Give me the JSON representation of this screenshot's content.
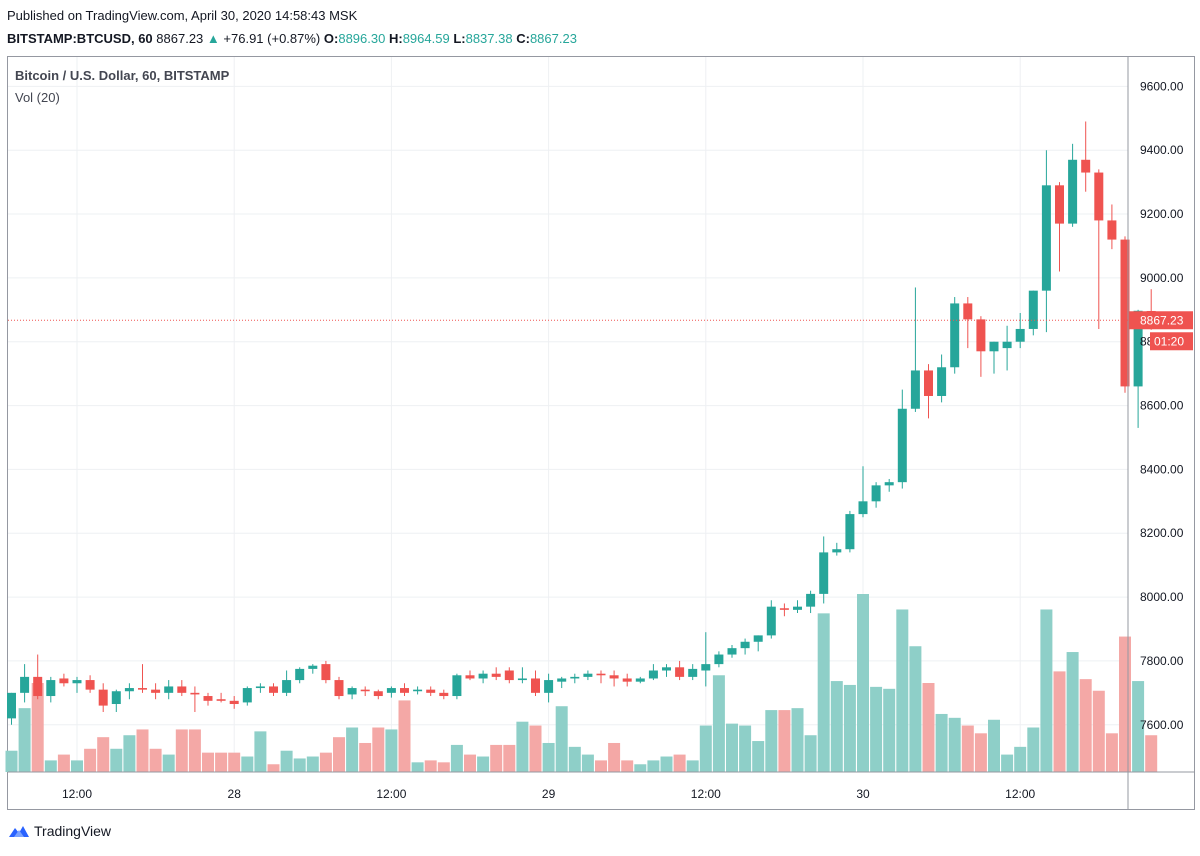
{
  "header": {
    "published": "Published on TradingView.com, April 30, 2020 14:58:43 MSK",
    "symbol": "BITSTAMP:BTCUSD, 60",
    "last": "8867.23",
    "change": "+76.91 (+0.87%)",
    "o_label": "O:",
    "o_val": "8896.30",
    "h_label": "H:",
    "h_val": "8964.59",
    "l_label": "L:",
    "l_val": "8837.38",
    "c_label": "C:",
    "c_val": "8867.23"
  },
  "legend": {
    "title": "Bitcoin / U.S. Dollar, 60, BITSTAMP",
    "volume": "Vol (20)"
  },
  "price_tag": {
    "price": "8867.23",
    "countdown": "01:20"
  },
  "footer": {
    "brand": "TradingView"
  },
  "colors": {
    "up": "#26a69a",
    "down": "#ef5350",
    "up_vol": "#8ecfc8",
    "down_vol": "#f4a8a6",
    "grid": "#eef0f3"
  },
  "chart_data": {
    "type": "candlestick",
    "title": "Bitcoin / U.S. Dollar, 60, BITSTAMP",
    "y_ticks": [
      7600,
      7800,
      8000,
      8200,
      8400,
      8600,
      8800,
      9000,
      9200,
      9400,
      9600
    ],
    "y_tick_labels": [
      "7600.00",
      "7800.00",
      "8000.00",
      "8200.00",
      "8400.00",
      "8600.00",
      "8800.00",
      "9000.00",
      "9200.00",
      "9400.00",
      "9600.00"
    ],
    "ylim": [
      7452,
      9692
    ],
    "x_ticks": [
      {
        "label": "12:00",
        "index": 5
      },
      {
        "label": "28",
        "index": 17
      },
      {
        "label": "12:00",
        "index": 29
      },
      {
        "label": "29",
        "index": 41
      },
      {
        "label": "12:00",
        "index": 53
      },
      {
        "label": "30",
        "index": 65
      },
      {
        "label": "12:00",
        "index": 77
      }
    ],
    "last_price": 8867.23,
    "candles": [
      {
        "o": 7620,
        "h": 7700,
        "l": 7600,
        "c": 7700,
        "v": 0.55
      },
      {
        "o": 7700,
        "h": 7790,
        "l": 7670,
        "c": 7750,
        "v": 1.65
      },
      {
        "o": 7750,
        "h": 7820,
        "l": 7680,
        "c": 7690,
        "v": 2.3
      },
      {
        "o": 7690,
        "h": 7750,
        "l": 7670,
        "c": 7740,
        "v": 0.3
      },
      {
        "o": 7745,
        "h": 7760,
        "l": 7720,
        "c": 7730,
        "v": 0.45
      },
      {
        "o": 7730,
        "h": 7750,
        "l": 7700,
        "c": 7740,
        "v": 0.3
      },
      {
        "o": 7740,
        "h": 7755,
        "l": 7700,
        "c": 7710,
        "v": 0.6
      },
      {
        "o": 7710,
        "h": 7730,
        "l": 7640,
        "c": 7660,
        "v": 0.9
      },
      {
        "o": 7665,
        "h": 7710,
        "l": 7640,
        "c": 7705,
        "v": 0.6
      },
      {
        "o": 7705,
        "h": 7730,
        "l": 7680,
        "c": 7715,
        "v": 0.95
      },
      {
        "o": 7715,
        "h": 7790,
        "l": 7700,
        "c": 7710,
        "v": 1.1
      },
      {
        "o": 7710,
        "h": 7730,
        "l": 7680,
        "c": 7700,
        "v": 0.6
      },
      {
        "o": 7700,
        "h": 7740,
        "l": 7680,
        "c": 7720,
        "v": 0.45
      },
      {
        "o": 7720,
        "h": 7740,
        "l": 7690,
        "c": 7700,
        "v": 1.1
      },
      {
        "o": 7700,
        "h": 7720,
        "l": 7640,
        "c": 7695,
        "v": 1.1
      },
      {
        "o": 7690,
        "h": 7700,
        "l": 7660,
        "c": 7675,
        "v": 0.5
      },
      {
        "o": 7680,
        "h": 7700,
        "l": 7670,
        "c": 7675,
        "v": 0.5
      },
      {
        "o": 7675,
        "h": 7690,
        "l": 7650,
        "c": 7665,
        "v": 0.5
      },
      {
        "o": 7670,
        "h": 7720,
        "l": 7660,
        "c": 7715,
        "v": 0.4
      },
      {
        "o": 7715,
        "h": 7730,
        "l": 7700,
        "c": 7720,
        "v": 1.05
      },
      {
        "o": 7720,
        "h": 7730,
        "l": 7690,
        "c": 7700,
        "v": 0.2
      },
      {
        "o": 7700,
        "h": 7770,
        "l": 7690,
        "c": 7740,
        "v": 0.55
      },
      {
        "o": 7740,
        "h": 7780,
        "l": 7730,
        "c": 7775,
        "v": 0.35
      },
      {
        "o": 7775,
        "h": 7790,
        "l": 7760,
        "c": 7785,
        "v": 0.4
      },
      {
        "o": 7790,
        "h": 7800,
        "l": 7730,
        "c": 7740,
        "v": 0.5
      },
      {
        "o": 7740,
        "h": 7750,
        "l": 7680,
        "c": 7690,
        "v": 0.9
      },
      {
        "o": 7695,
        "h": 7720,
        "l": 7680,
        "c": 7715,
        "v": 1.15
      },
      {
        "o": 7710,
        "h": 7720,
        "l": 7690,
        "c": 7705,
        "v": 0.75
      },
      {
        "o": 7705,
        "h": 7710,
        "l": 7680,
        "c": 7690,
        "v": 1.15
      },
      {
        "o": 7700,
        "h": 7720,
        "l": 7685,
        "c": 7715,
        "v": 1.1
      },
      {
        "o": 7715,
        "h": 7730,
        "l": 7690,
        "c": 7700,
        "v": 1.85
      },
      {
        "o": 7705,
        "h": 7720,
        "l": 7695,
        "c": 7710,
        "v": 0.25
      },
      {
        "o": 7710,
        "h": 7720,
        "l": 7690,
        "c": 7700,
        "v": 0.3
      },
      {
        "o": 7700,
        "h": 7710,
        "l": 7680,
        "c": 7690,
        "v": 0.25
      },
      {
        "o": 7690,
        "h": 7760,
        "l": 7680,
        "c": 7755,
        "v": 0.7
      },
      {
        "o": 7755,
        "h": 7770,
        "l": 7740,
        "c": 7745,
        "v": 0.45
      },
      {
        "o": 7745,
        "h": 7770,
        "l": 7730,
        "c": 7760,
        "v": 0.4
      },
      {
        "o": 7760,
        "h": 7780,
        "l": 7740,
        "c": 7750,
        "v": 0.7
      },
      {
        "o": 7770,
        "h": 7780,
        "l": 7730,
        "c": 7740,
        "v": 0.7
      },
      {
        "o": 7740,
        "h": 7780,
        "l": 7730,
        "c": 7745,
        "v": 1.3
      },
      {
        "o": 7745,
        "h": 7770,
        "l": 7690,
        "c": 7700,
        "v": 1.2
      },
      {
        "o": 7700,
        "h": 7760,
        "l": 7670,
        "c": 7740,
        "v": 0.75
      },
      {
        "o": 7735,
        "h": 7750,
        "l": 7715,
        "c": 7745,
        "v": 1.7
      },
      {
        "o": 7745,
        "h": 7760,
        "l": 7730,
        "c": 7750,
        "v": 0.65
      },
      {
        "o": 7750,
        "h": 7770,
        "l": 7740,
        "c": 7760,
        "v": 0.45
      },
      {
        "o": 7760,
        "h": 7770,
        "l": 7730,
        "c": 7755,
        "v": 0.3
      },
      {
        "o": 7755,
        "h": 7770,
        "l": 7720,
        "c": 7745,
        "v": 0.75
      },
      {
        "o": 7745,
        "h": 7760,
        "l": 7720,
        "c": 7735,
        "v": 0.3
      },
      {
        "o": 7735,
        "h": 7750,
        "l": 7730,
        "c": 7745,
        "v": 0.2
      },
      {
        "o": 7745,
        "h": 7790,
        "l": 7740,
        "c": 7770,
        "v": 0.3
      },
      {
        "o": 7770,
        "h": 7790,
        "l": 7750,
        "c": 7780,
        "v": 0.4
      },
      {
        "o": 7780,
        "h": 7800,
        "l": 7740,
        "c": 7750,
        "v": 0.45
      },
      {
        "o": 7750,
        "h": 7790,
        "l": 7740,
        "c": 7775,
        "v": 0.3
      },
      {
        "o": 7770,
        "h": 7890,
        "l": 7720,
        "c": 7790,
        "v": 1.2
      },
      {
        "o": 7790,
        "h": 7830,
        "l": 7780,
        "c": 7820,
        "v": 2.5
      },
      {
        "o": 7820,
        "h": 7850,
        "l": 7810,
        "c": 7840,
        "v": 1.25
      },
      {
        "o": 7840,
        "h": 7870,
        "l": 7820,
        "c": 7860,
        "v": 1.2
      },
      {
        "o": 7860,
        "h": 7880,
        "l": 7830,
        "c": 7880,
        "v": 0.8
      },
      {
        "o": 7880,
        "h": 7990,
        "l": 7870,
        "c": 7970,
        "v": 1.6
      },
      {
        "o": 7965,
        "h": 7980,
        "l": 7940,
        "c": 7960,
        "v": 1.6
      },
      {
        "o": 7960,
        "h": 7990,
        "l": 7950,
        "c": 7970,
        "v": 1.65
      },
      {
        "o": 7970,
        "h": 8020,
        "l": 7950,
        "c": 8010,
        "v": 0.95
      },
      {
        "o": 8010,
        "h": 8190,
        "l": 7980,
        "c": 8140,
        "v": 4.1
      },
      {
        "o": 8140,
        "h": 8170,
        "l": 8130,
        "c": 8150,
        "v": 2.35
      },
      {
        "o": 8150,
        "h": 8270,
        "l": 8140,
        "c": 8260,
        "v": 2.25
      },
      {
        "o": 8260,
        "h": 8410,
        "l": 8250,
        "c": 8300,
        "v": 4.6
      },
      {
        "o": 8300,
        "h": 8360,
        "l": 8280,
        "c": 8350,
        "v": 2.2
      },
      {
        "o": 8350,
        "h": 8370,
        "l": 8330,
        "c": 8360,
        "v": 2.15
      },
      {
        "o": 8360,
        "h": 8650,
        "l": 8340,
        "c": 8590,
        "v": 4.2
      },
      {
        "o": 8590,
        "h": 8970,
        "l": 8580,
        "c": 8710,
        "v": 3.25
      },
      {
        "o": 8710,
        "h": 8730,
        "l": 8560,
        "c": 8630,
        "v": 2.3
      },
      {
        "o": 8630,
        "h": 8760,
        "l": 8610,
        "c": 8720,
        "v": 1.5
      },
      {
        "o": 8720,
        "h": 8940,
        "l": 8700,
        "c": 8920,
        "v": 1.4
      },
      {
        "o": 8920,
        "h": 8940,
        "l": 8780,
        "c": 8870,
        "v": 1.2
      },
      {
        "o": 8870,
        "h": 8880,
        "l": 8690,
        "c": 8770,
        "v": 1.0
      },
      {
        "o": 8770,
        "h": 8800,
        "l": 8700,
        "c": 8800,
        "v": 1.35
      },
      {
        "o": 8780,
        "h": 8850,
        "l": 8710,
        "c": 8800,
        "v": 0.45
      },
      {
        "o": 8800,
        "h": 8890,
        "l": 8780,
        "c": 8840,
        "v": 0.65
      },
      {
        "o": 8840,
        "h": 8960,
        "l": 8820,
        "c": 8960,
        "v": 1.15
      },
      {
        "o": 8960,
        "h": 9400,
        "l": 8830,
        "c": 9290,
        "v": 4.2
      },
      {
        "o": 9290,
        "h": 9300,
        "l": 9020,
        "c": 9170,
        "v": 2.6
      },
      {
        "o": 9170,
        "h": 9420,
        "l": 9160,
        "c": 9370,
        "v": 3.1
      },
      {
        "o": 9370,
        "h": 9490,
        "l": 9270,
        "c": 9330,
        "v": 2.4
      },
      {
        "o": 9330,
        "h": 9340,
        "l": 8840,
        "c": 9180,
        "v": 2.1
      },
      {
        "o": 9180,
        "h": 9230,
        "l": 9090,
        "c": 9120,
        "v": 1.0
      },
      {
        "o": 9120,
        "h": 9130,
        "l": 8640,
        "c": 8660,
        "v": 3.5
      },
      {
        "o": 8660,
        "h": 8900,
        "l": 8530,
        "c": 8897,
        "v": 2.35
      },
      {
        "o": 8896.3,
        "h": 8964.59,
        "l": 8837.38,
        "c": 8867.23,
        "v": 0.95
      }
    ]
  }
}
